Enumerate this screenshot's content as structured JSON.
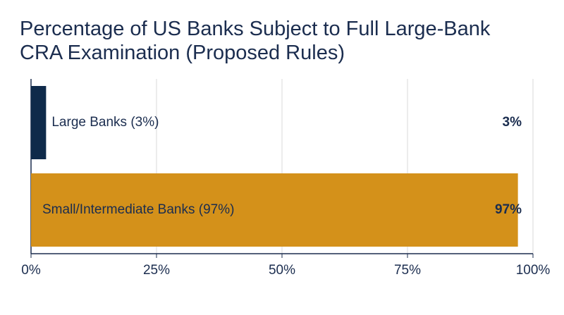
{
  "chart_data": {
    "type": "hbar",
    "title": "Percentage of US Banks Subject to Full Large-Bank CRA Examination (Proposed Rules)",
    "categories": [
      "Large Banks (3%)",
      "Small/Intermediate Banks (97%)"
    ],
    "values": [
      3,
      97
    ],
    "value_labels": [
      "3%",
      "97%"
    ],
    "colors": [
      "#0f2a4a",
      "#d4911a"
    ],
    "xlim": [
      0,
      100
    ],
    "xticks": [
      {
        "value": 0,
        "label": "0%"
      },
      {
        "value": 25,
        "label": "25%"
      },
      {
        "value": 50,
        "label": "50%"
      },
      {
        "value": 75,
        "label": "75%"
      },
      {
        "value": 100,
        "label": "100%"
      }
    ],
    "grid": true
  }
}
